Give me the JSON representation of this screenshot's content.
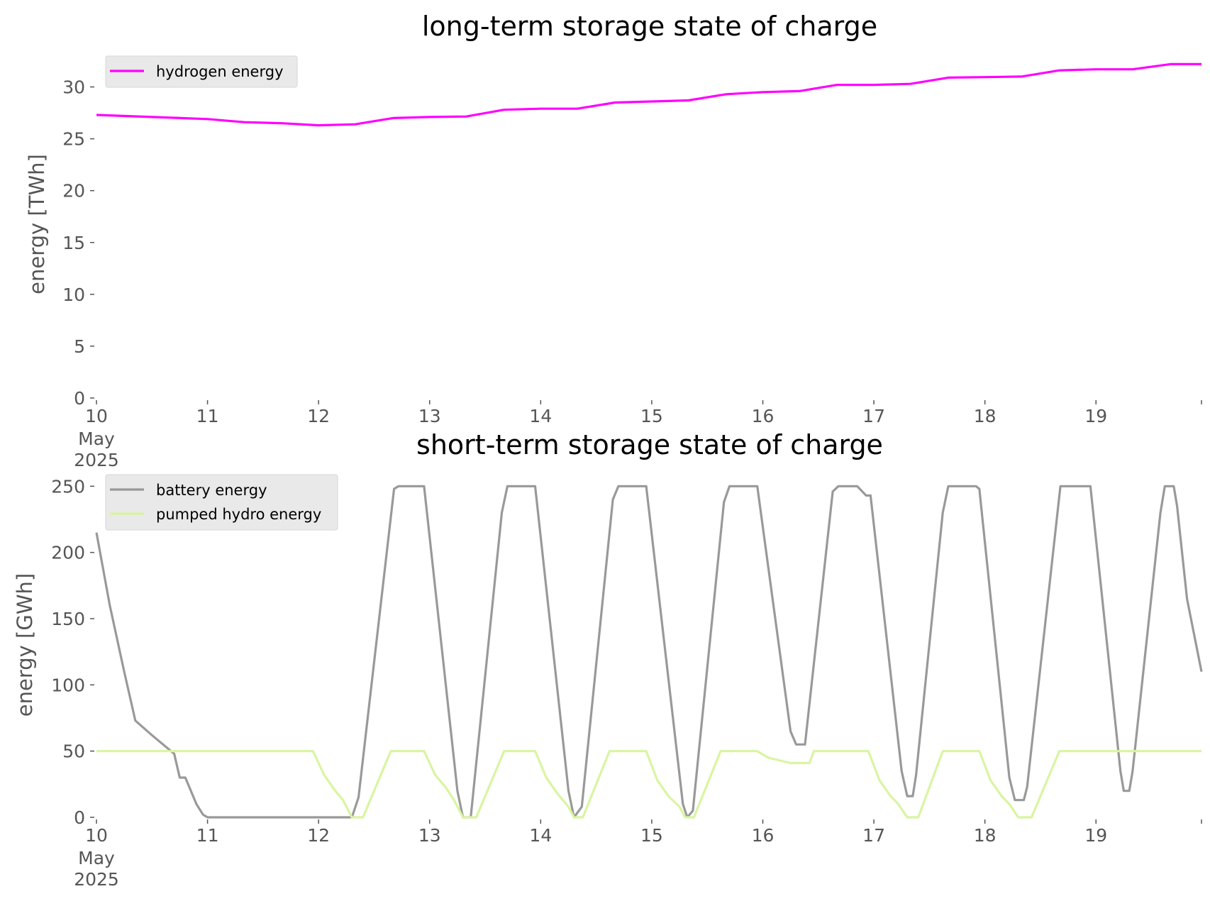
{
  "chart_data": [
    {
      "type": "line",
      "title": "long-term storage state of charge",
      "ylabel": "energy [TWh]",
      "xlabel": "",
      "xlim": [
        10,
        19.95
      ],
      "ylim": [
        0,
        32.5
      ],
      "grid": false,
      "legend": "top-left",
      "x_ticks": [
        {
          "value": 10,
          "label": "10",
          "sub1": "May",
          "sub2": "2025"
        },
        {
          "value": 11,
          "label": "11"
        },
        {
          "value": 12,
          "label": "12"
        },
        {
          "value": 13,
          "label": "13"
        },
        {
          "value": 14,
          "label": "14"
        },
        {
          "value": 15,
          "label": "15"
        },
        {
          "value": 16,
          "label": "16"
        },
        {
          "value": 17,
          "label": "17"
        },
        {
          "value": 18,
          "label": "18"
        },
        {
          "value": 19,
          "label": "19"
        }
      ],
      "y_ticks": [
        0,
        5,
        10,
        15,
        20,
        25,
        30
      ],
      "series": [
        {
          "name": "hydrogen energy",
          "color": "#ff00ff",
          "points": [
            [
              10.0,
              27.3
            ],
            [
              10.5,
              27.1
            ],
            [
              11.0,
              26.9
            ],
            [
              11.33,
              26.6
            ],
            [
              11.67,
              26.5
            ],
            [
              12.0,
              26.3
            ],
            [
              12.33,
              26.4
            ],
            [
              12.67,
              27.0
            ],
            [
              13.0,
              27.1
            ],
            [
              13.33,
              27.15
            ],
            [
              13.67,
              27.8
            ],
            [
              14.0,
              27.9
            ],
            [
              14.33,
              27.9
            ],
            [
              14.67,
              28.5
            ],
            [
              15.0,
              28.6
            ],
            [
              15.33,
              28.7
            ],
            [
              15.67,
              29.3
            ],
            [
              16.0,
              29.5
            ],
            [
              16.33,
              29.6
            ],
            [
              16.67,
              30.2
            ],
            [
              17.0,
              30.2
            ],
            [
              17.33,
              30.3
            ],
            [
              17.67,
              30.9
            ],
            [
              18.0,
              30.95
            ],
            [
              18.33,
              31.0
            ],
            [
              18.67,
              31.6
            ],
            [
              19.0,
              31.7
            ],
            [
              19.33,
              31.7
            ],
            [
              19.67,
              32.2
            ],
            [
              19.95,
              32.2
            ]
          ]
        }
      ]
    },
    {
      "type": "line",
      "title": "short-term storage state of charge",
      "ylabel": "energy [GWh]",
      "xlabel": "",
      "xlim": [
        10,
        19.95
      ],
      "ylim": [
        0,
        255
      ],
      "grid": false,
      "legend": "top-left",
      "x_ticks": [
        {
          "value": 10,
          "label": "10",
          "sub1": "May",
          "sub2": "2025"
        },
        {
          "value": 11,
          "label": "11"
        },
        {
          "value": 12,
          "label": "12"
        },
        {
          "value": 13,
          "label": "13"
        },
        {
          "value": 14,
          "label": "14"
        },
        {
          "value": 15,
          "label": "15"
        },
        {
          "value": 16,
          "label": "16"
        },
        {
          "value": 17,
          "label": "17"
        },
        {
          "value": 18,
          "label": "18"
        },
        {
          "value": 19,
          "label": "19"
        }
      ],
      "y_ticks": [
        0,
        50,
        100,
        150,
        200,
        250
      ],
      "series": [
        {
          "name": "battery energy",
          "color": "#999999",
          "points": [
            [
              10.0,
              215
            ],
            [
              10.12,
              160
            ],
            [
              10.25,
              110
            ],
            [
              10.35,
              73
            ],
            [
              10.5,
              62
            ],
            [
              10.7,
              48
            ],
            [
              10.75,
              30
            ],
            [
              10.8,
              30
            ],
            [
              10.9,
              10
            ],
            [
              10.96,
              2
            ],
            [
              11.0,
              0
            ],
            [
              12.0,
              0
            ],
            [
              12.3,
              0
            ],
            [
              12.36,
              15
            ],
            [
              12.68,
              248
            ],
            [
              12.72,
              250
            ],
            [
              12.95,
              250
            ],
            [
              13.25,
              20
            ],
            [
              13.3,
              0
            ],
            [
              13.37,
              0
            ],
            [
              13.65,
              230
            ],
            [
              13.7,
              250
            ],
            [
              13.95,
              250
            ],
            [
              14.25,
              20
            ],
            [
              14.3,
              0
            ],
            [
              14.37,
              8
            ],
            [
              14.65,
              240
            ],
            [
              14.7,
              250
            ],
            [
              14.95,
              250
            ],
            [
              15.28,
              10
            ],
            [
              15.32,
              0
            ],
            [
              15.37,
              5
            ],
            [
              15.65,
              238
            ],
            [
              15.7,
              250
            ],
            [
              15.95,
              250
            ],
            [
              16.25,
              65
            ],
            [
              16.3,
              55
            ],
            [
              16.38,
              55
            ],
            [
              16.63,
              246
            ],
            [
              16.68,
              250
            ],
            [
              16.85,
              250
            ],
            [
              16.93,
              243
            ],
            [
              16.97,
              243
            ],
            [
              17.25,
              35
            ],
            [
              17.3,
              16
            ],
            [
              17.35,
              16
            ],
            [
              17.38,
              32
            ],
            [
              17.62,
              230
            ],
            [
              17.67,
              250
            ],
            [
              17.92,
              250
            ],
            [
              17.95,
              248
            ],
            [
              18.22,
              30
            ],
            [
              18.27,
              13
            ],
            [
              18.35,
              13
            ],
            [
              18.38,
              23
            ],
            [
              18.64,
              220
            ],
            [
              18.68,
              250
            ],
            [
              18.95,
              250
            ],
            [
              19.22,
              35
            ],
            [
              19.25,
              20
            ],
            [
              19.3,
              20
            ],
            [
              19.33,
              35
            ],
            [
              19.58,
              230
            ],
            [
              19.62,
              250
            ],
            [
              19.7,
              250
            ],
            [
              19.73,
              235
            ],
            [
              19.82,
              165
            ],
            [
              19.95,
              110
            ]
          ]
        },
        {
          "name": "pumped hydro energy",
          "color": "#d9f5a0",
          "points": [
            [
              10.0,
              50
            ],
            [
              11.95,
              50
            ],
            [
              12.05,
              32
            ],
            [
              12.15,
              20
            ],
            [
              12.22,
              13
            ],
            [
              12.3,
              0
            ],
            [
              12.4,
              0
            ],
            [
              12.65,
              50
            ],
            [
              12.95,
              50
            ],
            [
              13.05,
              32
            ],
            [
              13.15,
              22
            ],
            [
              13.22,
              13
            ],
            [
              13.3,
              0
            ],
            [
              13.42,
              0
            ],
            [
              13.67,
              50
            ],
            [
              13.95,
              50
            ],
            [
              14.05,
              30
            ],
            [
              14.15,
              18
            ],
            [
              14.25,
              8
            ],
            [
              14.3,
              0
            ],
            [
              14.38,
              0
            ],
            [
              14.62,
              50
            ],
            [
              14.95,
              50
            ],
            [
              15.05,
              28
            ],
            [
              15.15,
              16
            ],
            [
              15.25,
              8
            ],
            [
              15.3,
              0
            ],
            [
              15.38,
              0
            ],
            [
              15.62,
              50
            ],
            [
              15.95,
              50
            ],
            [
              16.05,
              45
            ],
            [
              16.25,
              41
            ],
            [
              16.42,
              41
            ],
            [
              16.46,
              50
            ],
            [
              16.95,
              50
            ],
            [
              17.05,
              28
            ],
            [
              17.15,
              16
            ],
            [
              17.22,
              10
            ],
            [
              17.3,
              0
            ],
            [
              17.4,
              0
            ],
            [
              17.62,
              50
            ],
            [
              17.95,
              50
            ],
            [
              18.05,
              28
            ],
            [
              18.15,
              16
            ],
            [
              18.22,
              10
            ],
            [
              18.3,
              0
            ],
            [
              18.42,
              0
            ],
            [
              18.67,
              50
            ],
            [
              19.95,
              50
            ]
          ]
        }
      ]
    }
  ]
}
